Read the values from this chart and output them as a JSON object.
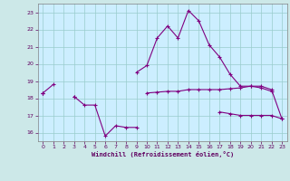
{
  "xlabel": "Windchill (Refroidissement éolien,°C)",
  "x": [
    0,
    1,
    2,
    3,
    4,
    5,
    6,
    7,
    8,
    9,
    10,
    11,
    12,
    13,
    14,
    15,
    16,
    17,
    18,
    19,
    20,
    21,
    22,
    23
  ],
  "line1": [
    18.3,
    18.8,
    null,
    18.1,
    null,
    null,
    null,
    null,
    null,
    19.5,
    19.9,
    21.5,
    22.2,
    21.5,
    23.1,
    22.5,
    21.1,
    20.4,
    19.4,
    18.7,
    18.7,
    18.6,
    18.4,
    null
  ],
  "line2": [
    18.3,
    null,
    null,
    18.1,
    17.6,
    17.6,
    15.8,
    16.4,
    16.3,
    16.3,
    null,
    null,
    null,
    null,
    null,
    null,
    null,
    17.2,
    17.1,
    17.0,
    17.0,
    17.0,
    17.0,
    16.8
  ],
  "line3": [
    18.3,
    null,
    null,
    null,
    null,
    null,
    null,
    null,
    null,
    null,
    18.3,
    18.35,
    18.4,
    18.4,
    18.5,
    18.5,
    18.5,
    18.5,
    18.55,
    18.6,
    18.7,
    18.7,
    18.5,
    16.8
  ],
  "ylim": [
    15.5,
    23.5
  ],
  "xlim": [
    -0.5,
    23.5
  ],
  "yticks": [
    16,
    17,
    18,
    19,
    20,
    21,
    22,
    23
  ],
  "xticks": [
    0,
    1,
    2,
    3,
    4,
    5,
    6,
    7,
    8,
    9,
    10,
    11,
    12,
    13,
    14,
    15,
    16,
    17,
    18,
    19,
    20,
    21,
    22,
    23
  ],
  "line_color": "#800080",
  "bg_color": "#cceeff",
  "grid_color": "#99cccc",
  "fig_color": "#cce8e8",
  "tick_color": "#600060",
  "label_color": "#600060"
}
